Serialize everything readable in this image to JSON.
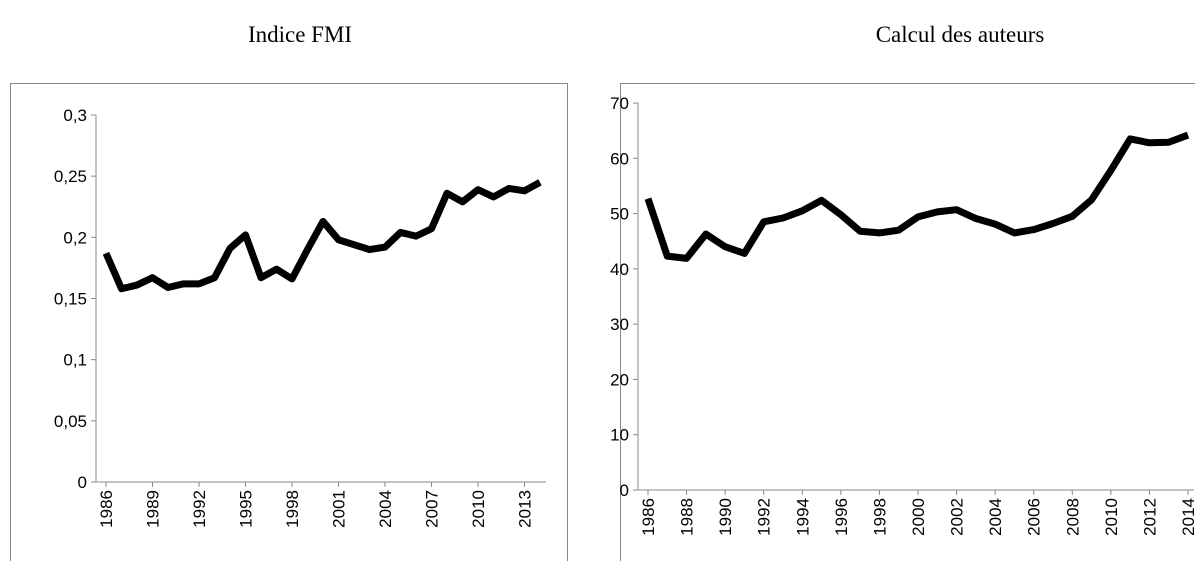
{
  "chart_data": [
    {
      "type": "line",
      "title": "Indice FMI",
      "x": [
        1986,
        1987,
        1988,
        1989,
        1990,
        1991,
        1992,
        1993,
        1994,
        1995,
        1996,
        1997,
        1998,
        1999,
        2000,
        2001,
        2002,
        2003,
        2004,
        2005,
        2006,
        2007,
        2008,
        2009,
        2010,
        2011,
        2012,
        2013,
        2014
      ],
      "series": [
        {
          "color": "#000000",
          "values": [
            0.187,
            0.158,
            0.161,
            0.167,
            0.159,
            0.162,
            0.162,
            0.167,
            0.191,
            0.202,
            0.167,
            0.174,
            0.166,
            0.19,
            0.213,
            0.198,
            0.194,
            0.19,
            0.192,
            0.204,
            0.201,
            0.207,
            0.236,
            0.229,
            0.239,
            0.233,
            0.24,
            0.238,
            0.245
          ]
        }
      ],
      "xlim": [
        1986,
        2014
      ],
      "xticks": [
        1986,
        1989,
        1992,
        1995,
        1998,
        2001,
        2004,
        2007,
        2010,
        2013
      ],
      "ylim": [
        0,
        0.3
      ],
      "yticks": [
        0,
        {
          "value": 0.05,
          "label": "0,05"
        },
        {
          "value": 0.1,
          "label": "0,1"
        },
        {
          "value": 0.15,
          "label": "0,15"
        },
        {
          "value": 0.2,
          "label": "0,2"
        },
        {
          "value": 0.25,
          "label": "0,25"
        },
        {
          "value": 0.3,
          "label": "0,3"
        }
      ]
    },
    {
      "type": "line",
      "title": "Calcul des auteurs",
      "x": [
        1986,
        1987,
        1988,
        1989,
        1990,
        1991,
        1992,
        1993,
        1994,
        1995,
        1996,
        1997,
        1998,
        1999,
        2000,
        2001,
        2002,
        2003,
        2004,
        2005,
        2006,
        2007,
        2008,
        2009,
        2010,
        2011,
        2012,
        2013,
        2014
      ],
      "series": [
        {
          "color": "#000000",
          "values": [
            52.7,
            42.3,
            41.9,
            46.3,
            44,
            42.8,
            48.5,
            49.2,
            50.5,
            52.4,
            49.8,
            46.8,
            46.5,
            47,
            49.4,
            50.3,
            50.7,
            49.1,
            48.1,
            46.5,
            47.1,
            48.2,
            49.5,
            52.5,
            57.8,
            63.5,
            62.8,
            62.9,
            64.2
          ]
        }
      ],
      "xlim": [
        1986,
        2014
      ],
      "xticks": [
        1986,
        1988,
        1990,
        1992,
        1994,
        1996,
        1998,
        2000,
        2002,
        2004,
        2006,
        2008,
        2010,
        2012,
        2014
      ],
      "ylim": [
        0,
        70
      ],
      "yticks": [
        0,
        10,
        20,
        30,
        40,
        50,
        60,
        70
      ]
    }
  ]
}
